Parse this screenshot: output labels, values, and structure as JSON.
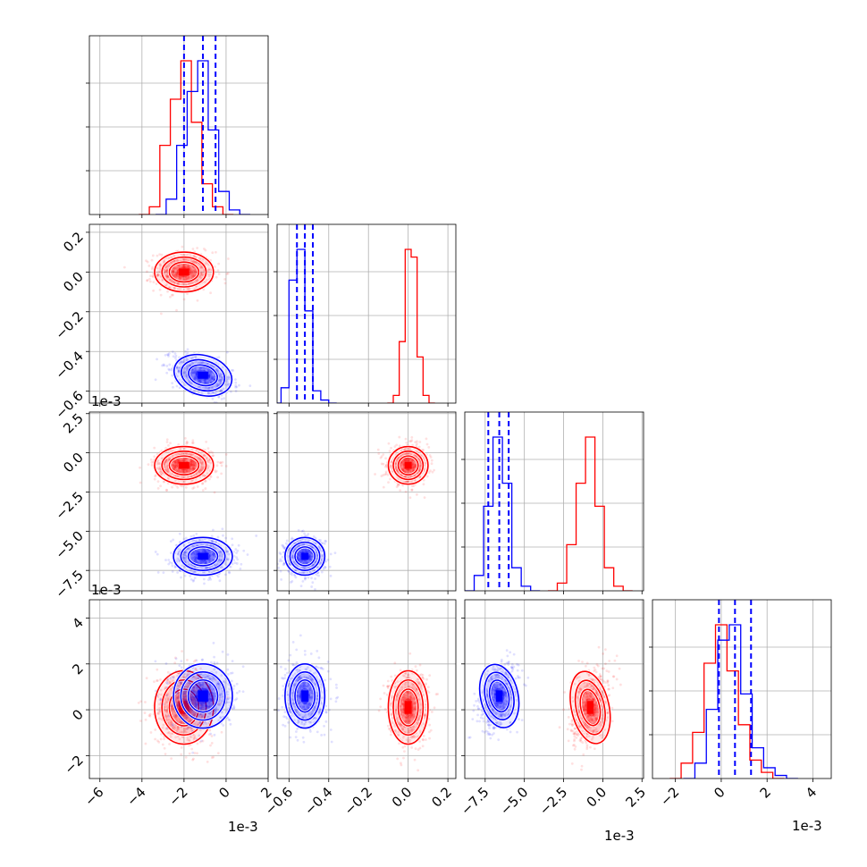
{
  "colors": {
    "series_a": "#ff0000",
    "series_b": "#0000ff",
    "grid": "#b0b0b0"
  },
  "offset_labels": {
    "row2_y": "1e-3",
    "row3_y": "1e-3",
    "col0_x": "1e-3",
    "col2_x": "1e-3",
    "col3_x": "1e-3"
  },
  "chart_data": {
    "type": "corner",
    "grid": true,
    "parameters": [
      {
        "index": 0,
        "scale_note": "1e-3",
        "range": [
          -6.5,
          2.0
        ],
        "x_ticks": [
          -6,
          -4,
          -2,
          0,
          2
        ],
        "x_tick_labels": [
          "−6",
          "−4",
          "−2",
          "0",
          "2"
        ]
      },
      {
        "index": 1,
        "range": [
          -0.66,
          0.24
        ],
        "x_ticks": [
          -0.6,
          -0.4,
          -0.2,
          0.0,
          0.2
        ],
        "x_tick_labels": [
          "−0.6",
          "−0.4",
          "−0.2",
          "0.0",
          "0.2"
        ],
        "y_ticks": [
          -0.6,
          -0.4,
          -0.2,
          0.0,
          0.2
        ],
        "y_tick_labels": [
          "−0.6",
          "−0.4",
          "−0.2",
          "0.0",
          "0.2"
        ]
      },
      {
        "index": 2,
        "scale_note": "1e-3",
        "range": [
          -8.8,
          2.6
        ],
        "x_ticks": [
          -7.5,
          -5.0,
          -2.5,
          0.0,
          2.5
        ],
        "x_tick_labels": [
          "−7.5",
          "−5.0",
          "−2.5",
          "0.0",
          "2.5"
        ],
        "y_ticks": [
          -7.5,
          -5.0,
          -2.5,
          0.0,
          2.5
        ],
        "y_tick_labels": [
          "−7.5",
          "−5.0",
          "−2.5",
          "0.0",
          "2.5"
        ]
      },
      {
        "index": 3,
        "scale_note": "1e-3",
        "range": [
          -3.0,
          4.8
        ],
        "x_ticks": [
          -2,
          0,
          2,
          4
        ],
        "x_tick_labels": [
          "−2",
          "0",
          "2",
          "4"
        ],
        "y_ticks": [
          -2,
          0,
          2,
          4
        ],
        "y_tick_labels": [
          "−2",
          "0",
          "2",
          "4"
        ]
      }
    ],
    "series": [
      {
        "color": "#ff0000",
        "mean": [
          -2.0,
          0.0,
          -0.8,
          0.1
        ],
        "std": [
          0.7,
          0.05,
          0.6,
          0.8
        ],
        "hist_centers": [
          [
            -3.4,
            -2.9,
            -2.4,
            -1.9,
            -1.4,
            -0.9,
            -0.4
          ],
          [
            -0.06,
            -0.03,
            0.0,
            0.03,
            0.06,
            0.09
          ],
          [
            -2.6,
            -2.0,
            -1.4,
            -0.8,
            -0.2,
            0.4,
            1.0
          ],
          [
            -1.5,
            -1.0,
            -0.5,
            0.0,
            0.5,
            1.0,
            1.5,
            2.0
          ]
        ],
        "hist_heights": [
          [
            0.05,
            0.45,
            0.75,
            1.0,
            0.6,
            0.2,
            0.05
          ],
          [
            0.05,
            0.4,
            1.0,
            0.95,
            0.3,
            0.05
          ],
          [
            0.05,
            0.3,
            0.7,
            1.0,
            0.55,
            0.15,
            0.03
          ],
          [
            0.1,
            0.3,
            0.75,
            1.0,
            0.7,
            0.35,
            0.12,
            0.04
          ]
        ]
      },
      {
        "color": "#0000ff",
        "mean": [
          -1.1,
          -0.52,
          -6.6,
          0.6
        ],
        "std": [
          0.7,
          0.05,
          0.6,
          0.7
        ],
        "quantiles": [
          [
            -2.0,
            -1.1,
            -0.5
          ],
          [
            -0.56,
            -0.52,
            -0.48
          ],
          [
            -7.3,
            -6.6,
            -6.0
          ],
          [
            -0.1,
            0.6,
            1.3
          ]
        ],
        "hist_centers": [
          [
            -2.6,
            -2.1,
            -1.6,
            -1.1,
            -0.6,
            -0.1,
            0.4
          ],
          [
            -0.62,
            -0.58,
            -0.54,
            -0.5,
            -0.46,
            -0.42
          ],
          [
            -7.9,
            -7.3,
            -6.7,
            -6.1,
            -5.5,
            -4.9
          ],
          [
            -0.9,
            -0.4,
            0.1,
            0.6,
            1.1,
            1.6,
            2.1,
            2.6
          ]
        ],
        "hist_heights": [
          [
            0.1,
            0.45,
            0.8,
            1.0,
            0.55,
            0.15,
            0.03
          ],
          [
            0.1,
            0.8,
            1.0,
            0.6,
            0.08,
            0.02
          ],
          [
            0.1,
            0.55,
            1.0,
            0.7,
            0.15,
            0.03
          ],
          [
            0.1,
            0.45,
            0.9,
            1.0,
            0.55,
            0.2,
            0.07,
            0.02
          ]
        ]
      }
    ]
  }
}
